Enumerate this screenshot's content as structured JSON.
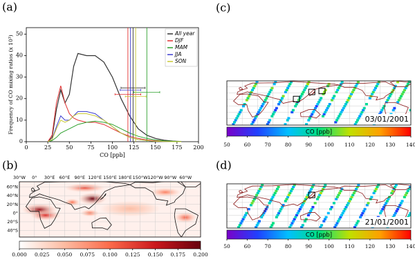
{
  "chart_data": [
    {
      "type": "line",
      "panel_label": "(a)",
      "xlabel": "CO [ppb]",
      "ylabel": "Frequency of CO mixing ratios (x 10³)",
      "xlim": [
        0,
        200
      ],
      "xticks": [
        0,
        25,
        50,
        75,
        100,
        125,
        150,
        175,
        200
      ],
      "ylim": [
        0,
        53
      ],
      "yticks": [
        0,
        10,
        20,
        30,
        40,
        50
      ],
      "x": [
        25,
        30,
        35,
        40,
        45,
        50,
        55,
        60,
        70,
        80,
        90,
        100,
        110,
        120,
        130,
        140,
        150,
        160,
        170,
        180
      ],
      "series": [
        {
          "name": "All year",
          "color": "#333333",
          "values": [
            0,
            2,
            15,
            24,
            18,
            22,
            35,
            41,
            40,
            40,
            37,
            30,
            20,
            12,
            6,
            3,
            1.5,
            0.7,
            0.3,
            0.1
          ],
          "mean": 124,
          "err": 14,
          "err_y": 25
        },
        {
          "name": "DJF",
          "color": "#e03030",
          "values": [
            0,
            3,
            18,
            26,
            18,
            13,
            11,
            10,
            9,
            9,
            8,
            6,
            4,
            2.5,
            1.5,
            0.8,
            0.4,
            0.2,
            0.1,
            0
          ],
          "mean": 118,
          "err": 15,
          "err_y": 22
        },
        {
          "name": "MAM",
          "color": "#2ca02c",
          "values": [
            0,
            0.5,
            2,
            4,
            5,
            6,
            7,
            8,
            9,
            9.5,
            9,
            8,
            6,
            4,
            2.5,
            1.5,
            0.8,
            0.4,
            0.2,
            0.1
          ],
          "mean": 140,
          "err": 15,
          "err_y": 23
        },
        {
          "name": "JJA",
          "color": "#3a3ad0",
          "values": [
            0,
            1,
            7,
            12,
            10,
            10,
            12,
            14,
            14,
            13,
            10,
            7,
            4,
            2,
            1,
            0.5,
            0.2,
            0.1,
            0,
            0
          ],
          "mean": 121,
          "err": 12,
          "err_y": 24
        },
        {
          "name": "SON",
          "color": "#c8c832",
          "values": [
            0,
            1,
            6,
            10,
            9,
            10,
            12,
            13,
            13,
            12,
            10,
            7,
            4,
            2,
            1,
            0.5,
            0.2,
            0.1,
            0,
            0
          ],
          "mean": 127,
          "err": 12,
          "err_y": 21
        }
      ]
    },
    {
      "type": "map",
      "panel_label": "(b)",
      "lon_labels": [
        "30°W",
        "0°",
        "30°E",
        "60°E",
        "90°E",
        "120°E",
        "150°E",
        "180°E",
        "150°W",
        "120°W",
        "90°W",
        "60°W"
      ],
      "lat_labels": [
        "60°N",
        "40°N",
        "20°N",
        "0°",
        "20°S",
        "40°S"
      ],
      "colorbar": {
        "lim": [
          0,
          0.2
        ],
        "colors": [
          "#ffffff",
          "#fcbba1",
          "#fb6a4a",
          "#cb181d",
          "#67000d"
        ],
        "ticks": [
          {
            "value": 0,
            "label": "0.000"
          },
          {
            "value": 0.025,
            "label": "0.025"
          },
          {
            "value": 0.05,
            "label": "0.050"
          },
          {
            "value": 0.075,
            "label": "0.075"
          },
          {
            "value": 0.1,
            "label": "0.100"
          },
          {
            "value": 0.125,
            "label": "0.125"
          },
          {
            "value": 0.15,
            "label": "0.150"
          },
          {
            "value": 0.175,
            "label": "0.175"
          },
          {
            "value": 0.2,
            "label": "0.200"
          }
        ]
      }
    },
    {
      "type": "map",
      "panel_label": "(c)",
      "date": "03/01/2001",
      "colorbar": {
        "label": "CO [ppb]",
        "lim": [
          50,
          140
        ],
        "colors": [
          "#7a00c8",
          "#2040ff",
          "#00c0ff",
          "#00e080",
          "#c0e000",
          "#ffa000",
          "#ff0000"
        ],
        "ticks": [
          50,
          60,
          70,
          80,
          90,
          100,
          110,
          120,
          130,
          140
        ]
      }
    },
    {
      "type": "map",
      "panel_label": "(d)",
      "date": "21/01/2001",
      "colorbar": {
        "label": "CO [ppb]",
        "lim": [
          50,
          140
        ],
        "colors": [
          "#7a00c8",
          "#2040ff",
          "#00c0ff",
          "#00e080",
          "#c0e000",
          "#ffa000",
          "#ff0000"
        ],
        "ticks": [
          50,
          60,
          70,
          80,
          90,
          100,
          110,
          120,
          130,
          140
        ]
      }
    }
  ]
}
